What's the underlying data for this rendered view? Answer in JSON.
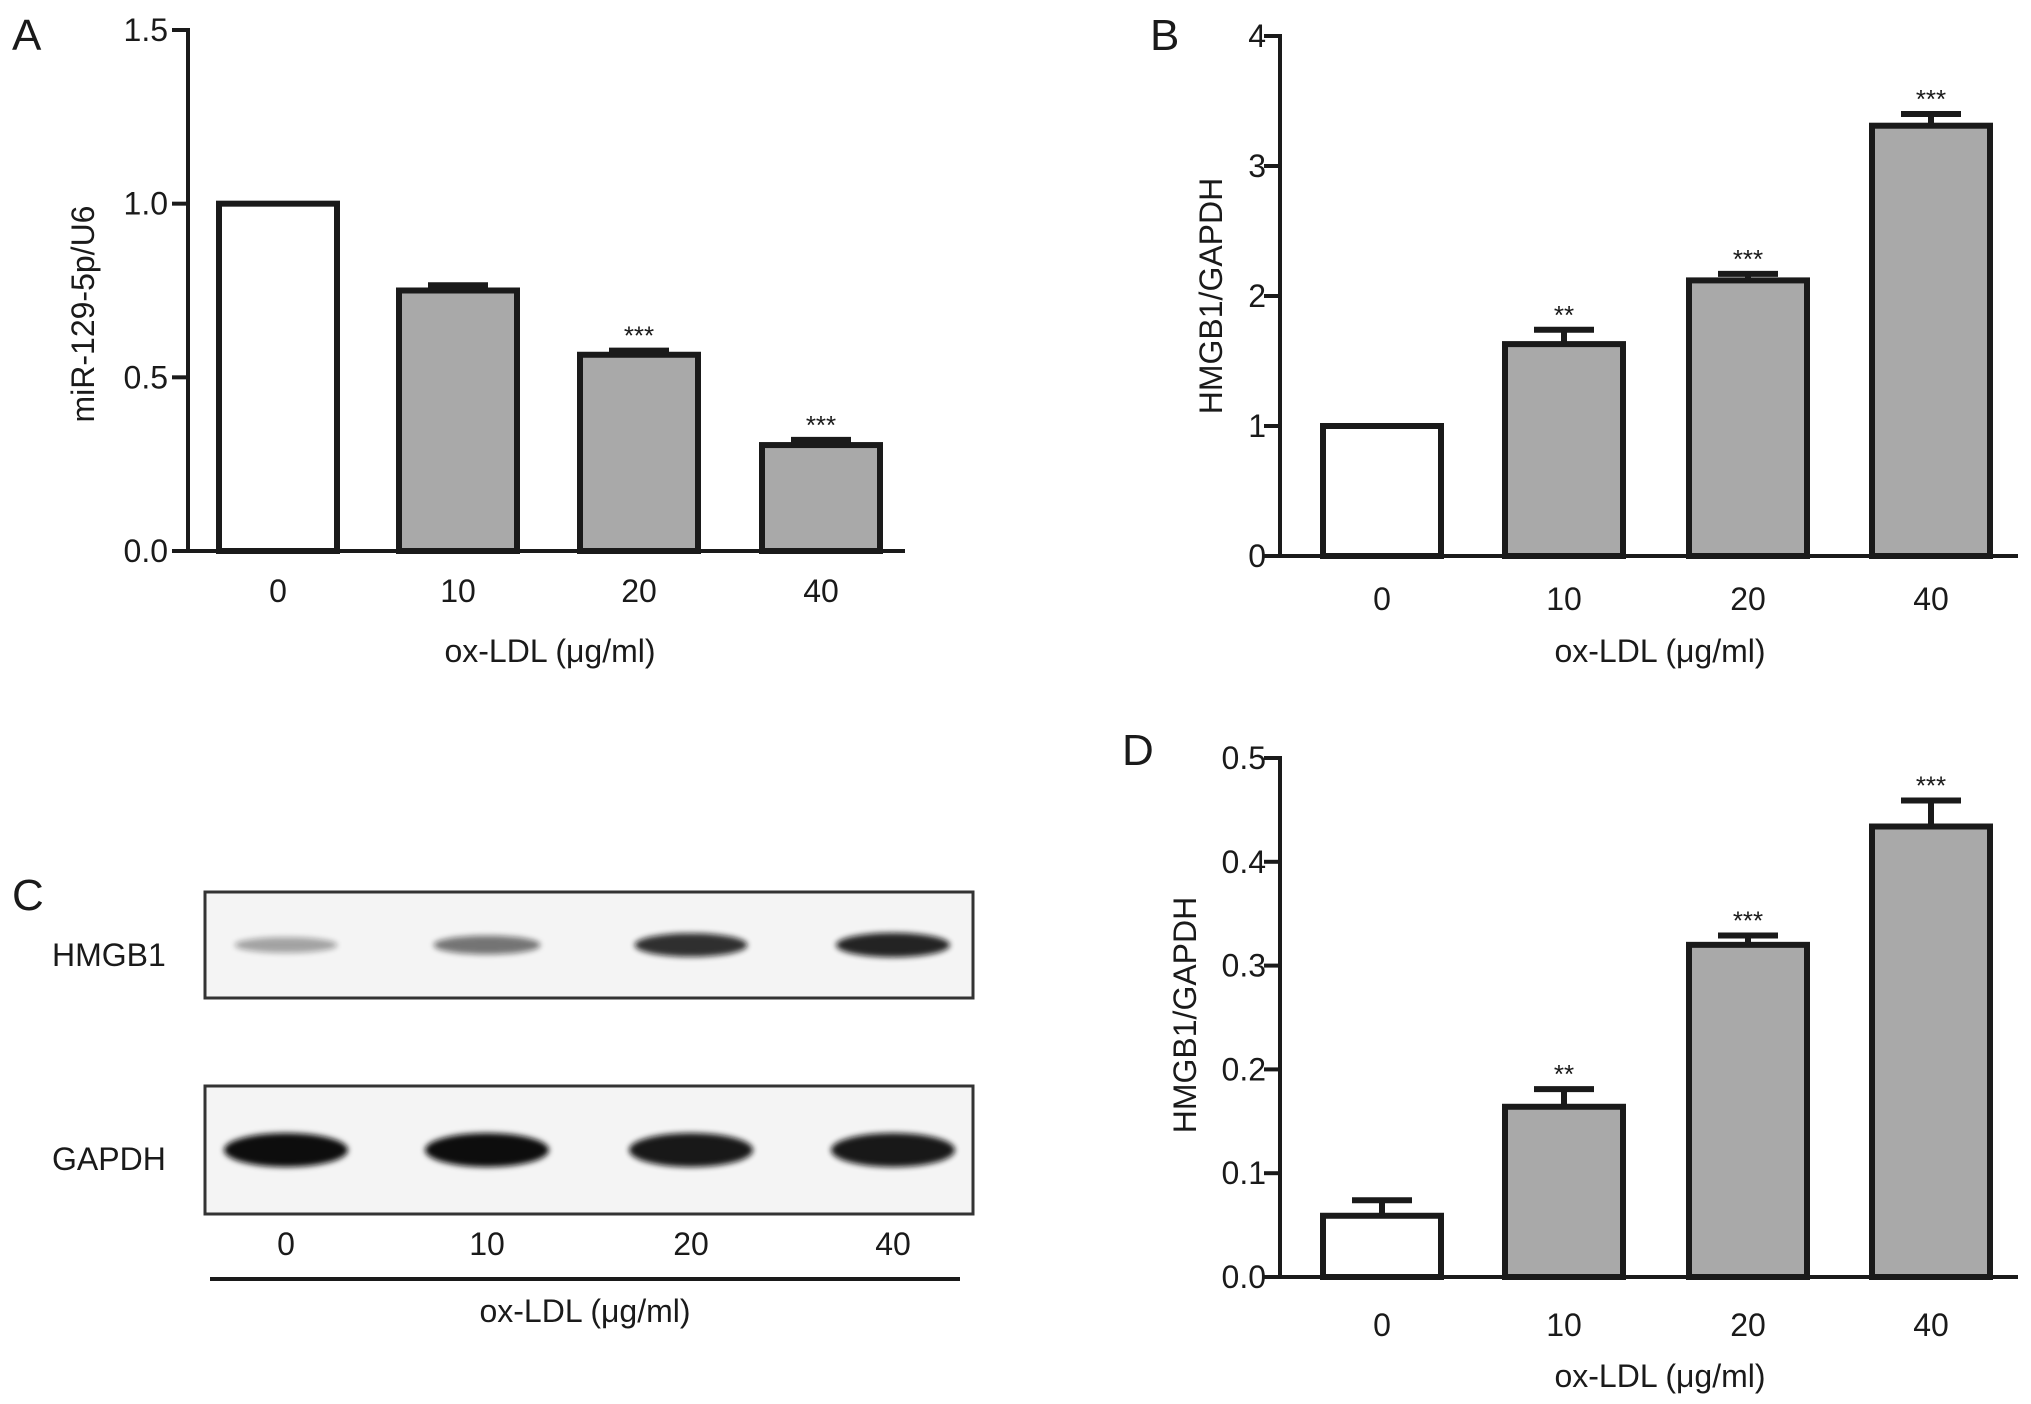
{
  "colors": {
    "control_bar": "#ffffff",
    "treated_bar": "#a9a9a9",
    "axis": "#1a1a1a",
    "band": "#111111"
  },
  "panels": {
    "A": "A",
    "B": "B",
    "C": "C",
    "D": "D"
  },
  "chart_data": [
    {
      "id": "A",
      "type": "bar",
      "categories": [
        "0",
        "10",
        "20",
        "40"
      ],
      "values": [
        1.0,
        0.75,
        0.565,
        0.305
      ],
      "errors": [
        0,
        0.015,
        0.012,
        0.015
      ],
      "significance": [
        "",
        "",
        "***",
        "***"
      ],
      "xlabel": "ox-LDL (μg/ml)",
      "ylabel": "miR-129-5p/U6",
      "ylim": [
        0,
        1.5
      ],
      "yticks": [
        "0.0",
        "0.5",
        "1.0",
        "1.5"
      ]
    },
    {
      "id": "B",
      "type": "bar",
      "categories": [
        "0",
        "10",
        "20",
        "40"
      ],
      "values": [
        1.0,
        1.63,
        2.12,
        3.31
      ],
      "errors": [
        0,
        0.11,
        0.05,
        0.09
      ],
      "significance": [
        "",
        "**",
        "***",
        "***"
      ],
      "xlabel": "ox-LDL (μg/ml)",
      "ylabel": "HMGB1/GAPDH",
      "ylim": [
        0,
        4
      ],
      "yticks": [
        "0",
        "1",
        "2",
        "3",
        "4"
      ]
    },
    {
      "id": "D",
      "type": "bar",
      "categories": [
        "0",
        "10",
        "20",
        "40"
      ],
      "values": [
        0.059,
        0.164,
        0.32,
        0.434
      ],
      "errors": [
        0.015,
        0.017,
        0.009,
        0.025
      ],
      "significance": [
        "",
        "**",
        "***",
        "***"
      ],
      "xlabel": "ox-LDL (μg/ml)",
      "ylabel": "HMGB1/GAPDH",
      "ylim": [
        0,
        0.5
      ],
      "yticks": [
        "0.0",
        "0.1",
        "0.2",
        "0.3",
        "0.4",
        "0.5"
      ]
    }
  ],
  "blot": {
    "rows": [
      {
        "label": "HMGB1",
        "intensities": [
          0.35,
          0.55,
          0.85,
          0.9
        ]
      },
      {
        "label": "GAPDH",
        "intensities": [
          1.0,
          1.0,
          0.95,
          0.95
        ]
      }
    ],
    "lanes": [
      "0",
      "10",
      "20",
      "40"
    ],
    "xlabel": "ox-LDL (μg/ml)"
  }
}
